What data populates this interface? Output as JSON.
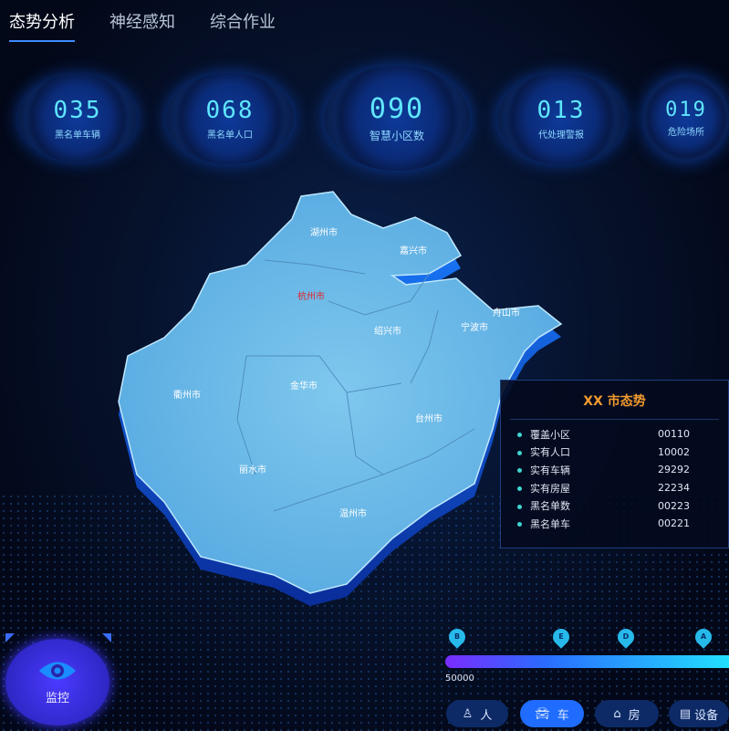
{
  "tabs": [
    {
      "label": "态势分析",
      "active": true
    },
    {
      "label": "神经感知"
    },
    {
      "label": "综合作业"
    }
  ],
  "stats": [
    {
      "value": "035",
      "label": "黑名单车辆"
    },
    {
      "value": "068",
      "label": "黑名单人口"
    },
    {
      "value": "090",
      "label": "智慧小区数"
    },
    {
      "value": "013",
      "label": "代处理警报"
    },
    {
      "value": "019",
      "label": "危险场所"
    }
  ],
  "map": {
    "highlight_color": "#e0262b",
    "cities": [
      "湖州市",
      "嘉兴市",
      "杭州市",
      "舟山市",
      "绍兴市",
      "宁波市",
      "衢州市",
      "金华市",
      "台州市",
      "丽水市",
      "温州市"
    ]
  },
  "panel": {
    "title": "XX 市态势",
    "rows": [
      {
        "k": "覆盖小区",
        "v": "00110"
      },
      {
        "k": "实有人口",
        "v": "10002"
      },
      {
        "k": "实有车辆",
        "v": "29292"
      },
      {
        "k": "实有房屋",
        "v": "22234"
      },
      {
        "k": "黑名单数",
        "v": "00223"
      },
      {
        "k": "黑名单车",
        "v": "00221"
      }
    ]
  },
  "timeline": {
    "markers": [
      "B",
      "E",
      "D",
      "A"
    ],
    "start_label": "50000"
  },
  "filters": [
    {
      "label": "人",
      "icon": "person-icon"
    },
    {
      "label": "车",
      "icon": "car-icon",
      "active": true
    },
    {
      "label": "房",
      "icon": "house-icon"
    },
    {
      "label": "设备",
      "icon": "device-icon"
    }
  ],
  "monitor": {
    "label": "监控",
    "icon": "eye-icon"
  }
}
